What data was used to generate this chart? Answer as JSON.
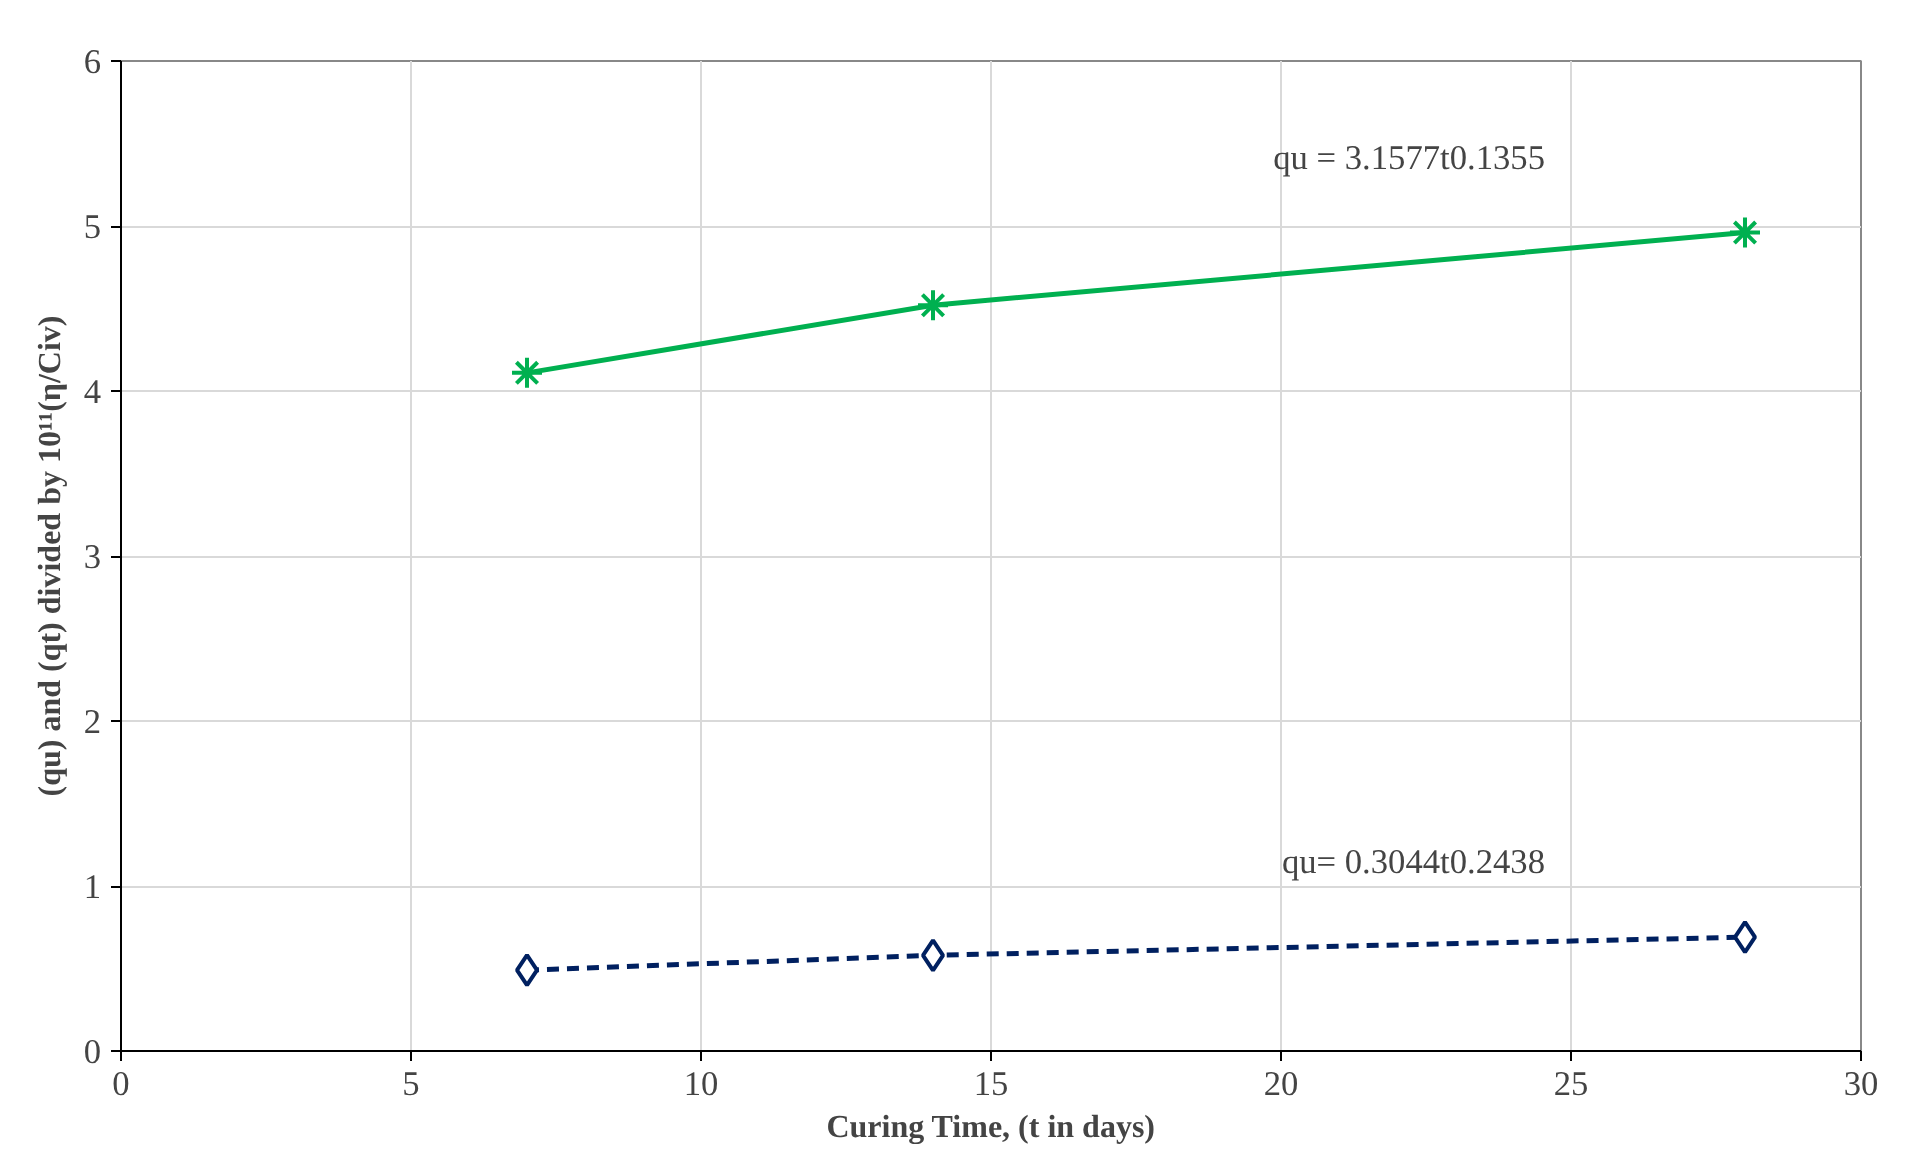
{
  "chart_data": {
    "type": "line",
    "xlabel": "Curing Time, (t in days)",
    "ylabel": "(qu) and (qt) divided by 10¹¹(η/Civ)",
    "x": [
      7,
      14,
      28
    ],
    "series": [
      {
        "color": "#00b050",
        "values": [
          4.11,
          4.52,
          4.96
        ],
        "marker": "cross",
        "line_style": "solid"
      },
      {
        "color": "#002060",
        "values": [
          0.49,
          0.58,
          0.69
        ],
        "marker": "diamond",
        "line_style": "dashed"
      }
    ],
    "annotations": [
      "qu = 3.1577t0.1355",
      "qu= 0.3044t0.2438"
    ],
    "xlim": [
      0,
      30
    ],
    "xticks": [
      0,
      5,
      10,
      15,
      20,
      25,
      30
    ],
    "ylim": [
      0,
      6
    ],
    "yticks": [
      0,
      1,
      2,
      3,
      4,
      5,
      6
    ],
    "grid": true
  }
}
